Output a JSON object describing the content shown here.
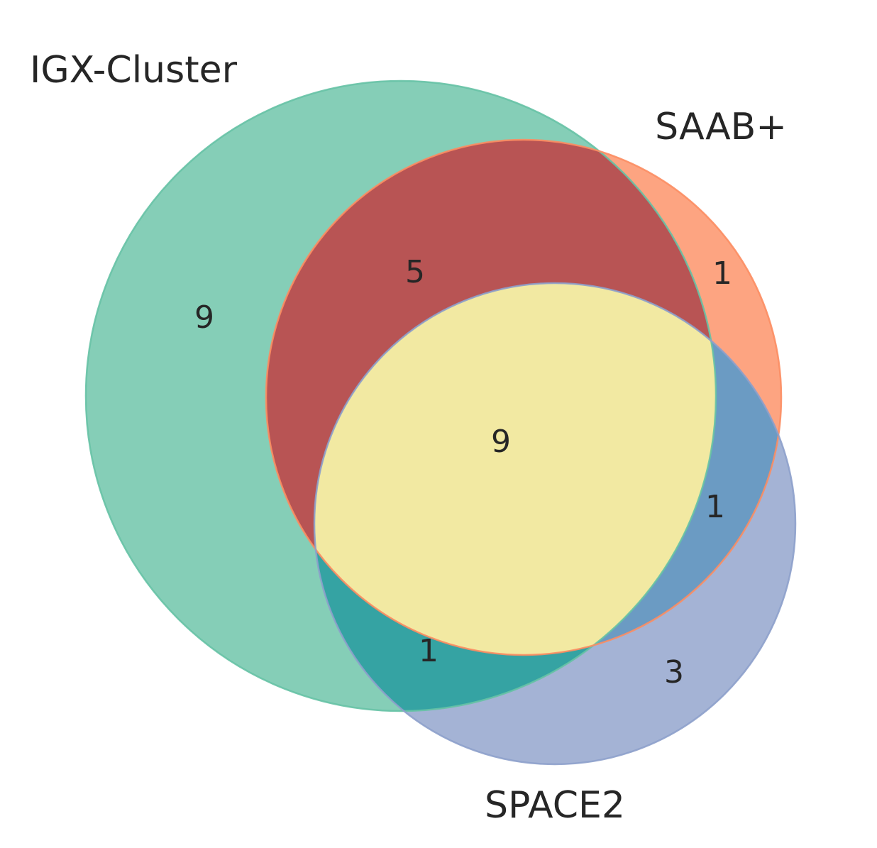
{
  "diagram": {
    "type": "venn3",
    "sets": [
      {
        "key": "igx",
        "name": "IGX-Cluster",
        "color": "#66c2a5"
      },
      {
        "key": "saab",
        "name": "SAAB+",
        "color": "#fc8d62"
      },
      {
        "key": "space2",
        "name": "SPACE2",
        "color": "#8da0cb"
      }
    ],
    "overlap_colors": {
      "igx_saab": "#b85454",
      "igx_space2": "#35a3a3",
      "saab_space2": "#6b9bc3",
      "all": "#f2e9a2"
    },
    "regions": {
      "igx_only": "9",
      "saab_only": "1",
      "space2_only": "3",
      "igx_saab": "5",
      "igx_space2": "1",
      "saab_space2": "1",
      "all": "9"
    }
  }
}
